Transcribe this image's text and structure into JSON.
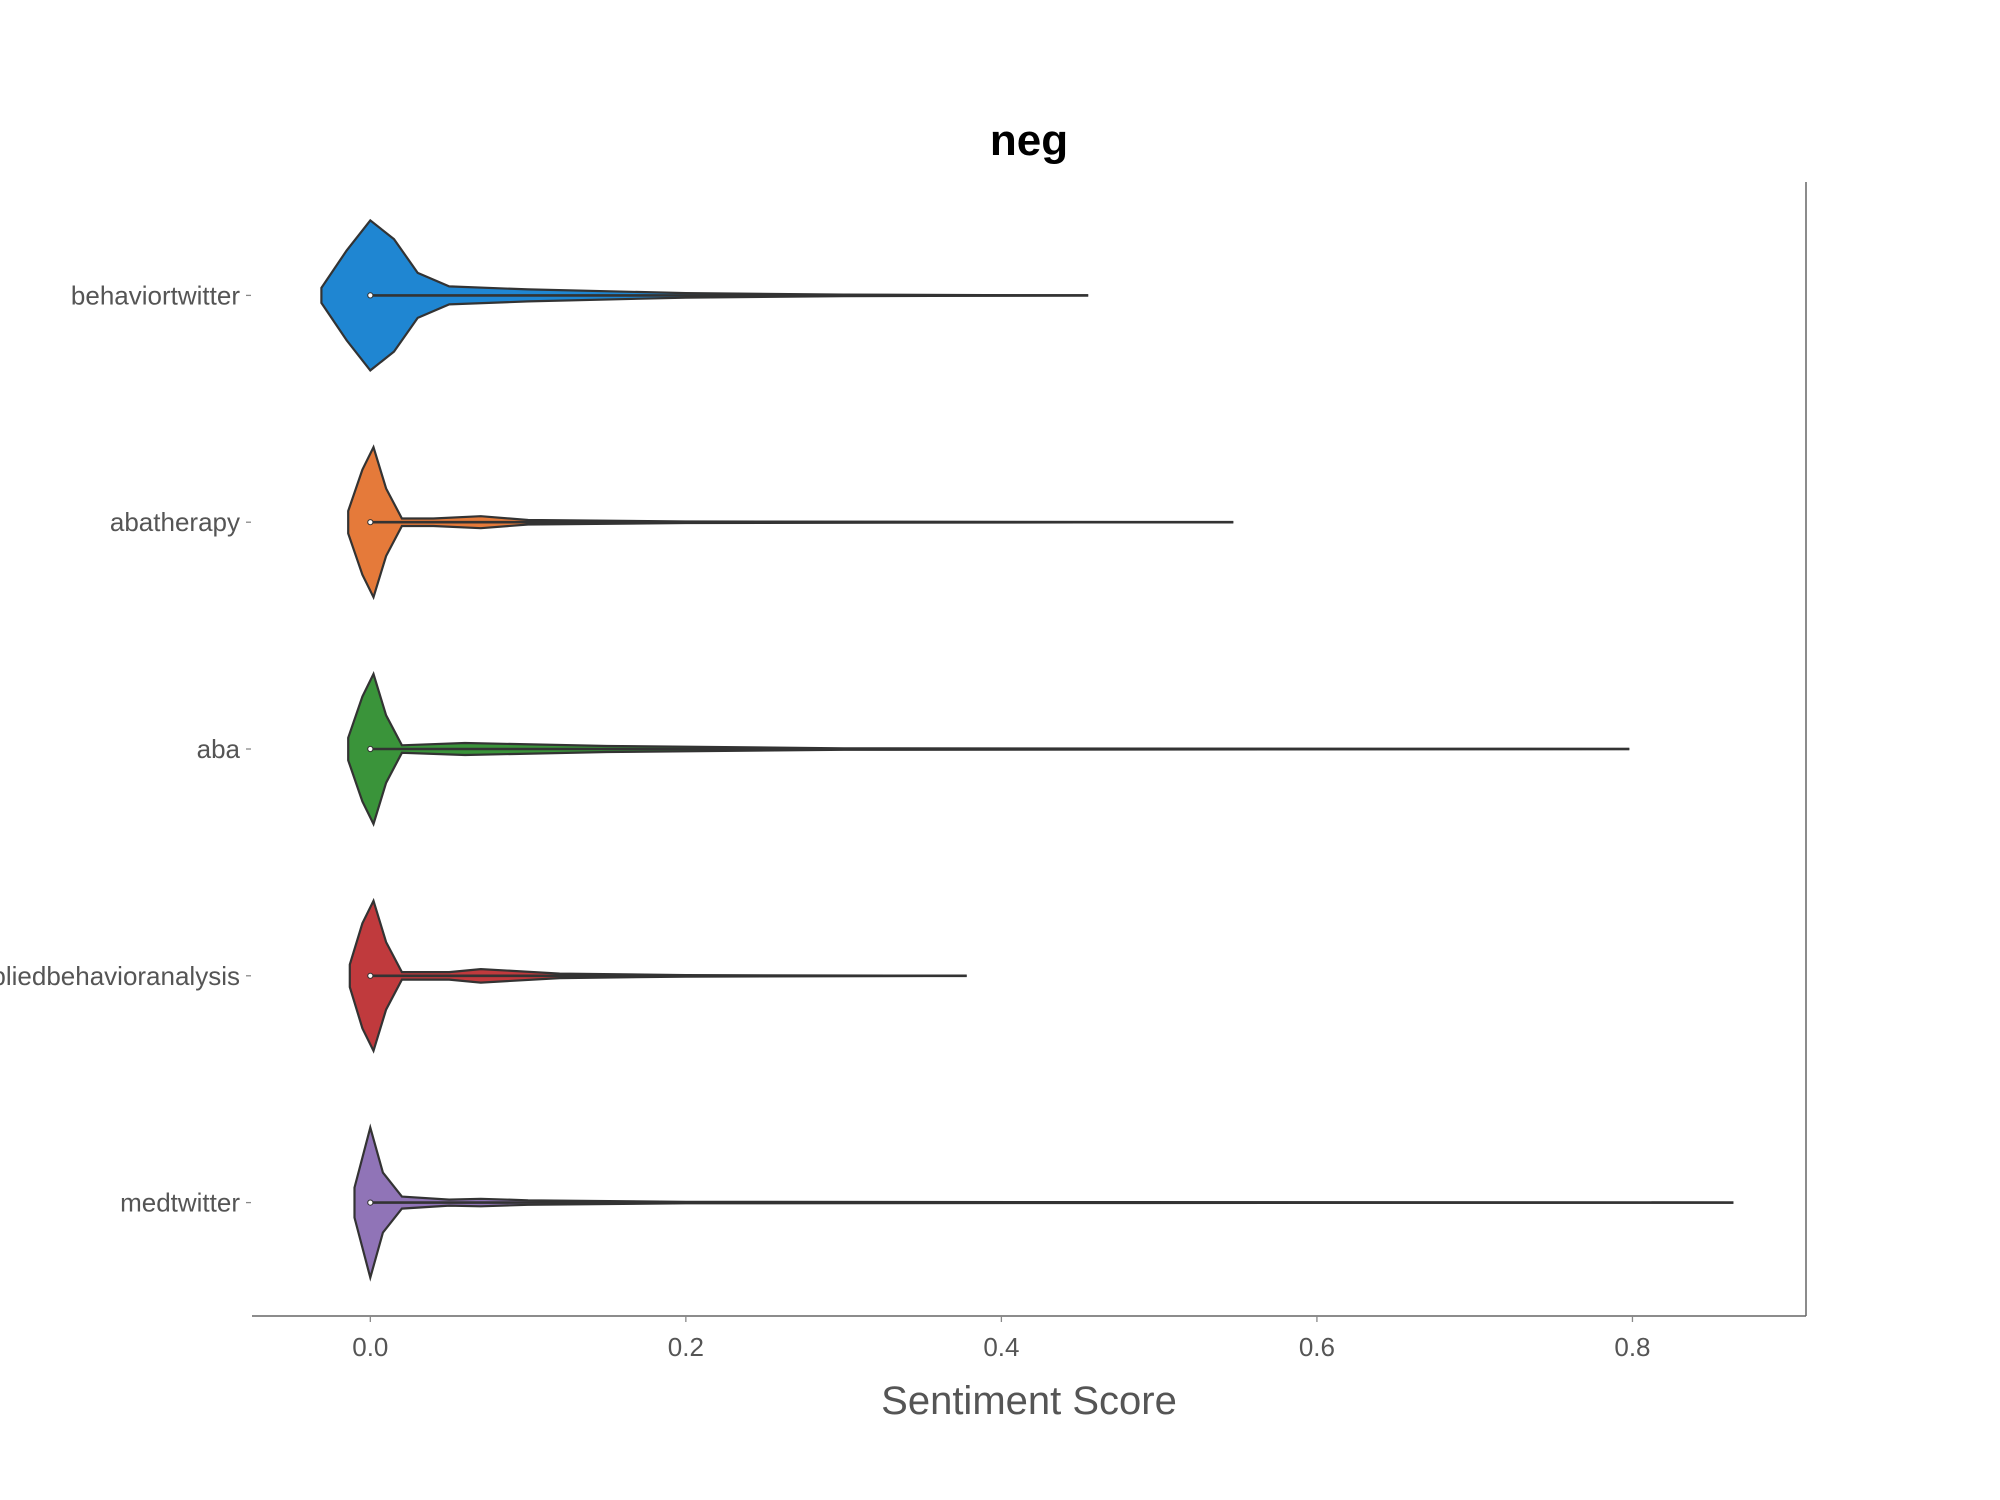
{
  "chart_data": {
    "type": "violin",
    "orientation": "horizontal",
    "title": "neg",
    "xlabel": "Sentiment Score",
    "ylabel": "",
    "xlim": [
      -0.075,
      0.91
    ],
    "xticks": [
      0.0,
      0.2,
      0.4,
      0.6,
      0.8
    ],
    "xtick_labels": [
      "0.0",
      "0.2",
      "0.4",
      "0.6",
      "0.8"
    ],
    "grid": false,
    "categories": [
      "behaviortwitter",
      "abatherapy",
      "aba",
      "appliedbehavioranalysis",
      "medtwitter"
    ],
    "series": [
      {
        "category": "behaviortwitter",
        "color": "#1f86d2",
        "median": 0.0,
        "max": 0.455,
        "density": [
          [
            -0.031,
            0.1
          ],
          [
            -0.015,
            0.6
          ],
          [
            0.0,
            1.0
          ],
          [
            0.015,
            0.75
          ],
          [
            0.03,
            0.3
          ],
          [
            0.05,
            0.12
          ],
          [
            0.1,
            0.08
          ],
          [
            0.2,
            0.03
          ],
          [
            0.3,
            0.01
          ],
          [
            0.455,
            0.0
          ]
        ]
      },
      {
        "category": "abatherapy",
        "color": "#e57a3a",
        "median": 0.0,
        "max": 0.547,
        "density": [
          [
            -0.014,
            0.15
          ],
          [
            -0.005,
            0.7
          ],
          [
            0.002,
            1.0
          ],
          [
            0.01,
            0.45
          ],
          [
            0.02,
            0.05
          ],
          [
            0.04,
            0.05
          ],
          [
            0.07,
            0.08
          ],
          [
            0.1,
            0.03
          ],
          [
            0.2,
            0.01
          ],
          [
            0.547,
            0.0
          ]
        ]
      },
      {
        "category": "aba",
        "color": "#3a943a",
        "median": 0.0,
        "max": 0.798,
        "density": [
          [
            -0.014,
            0.15
          ],
          [
            -0.005,
            0.7
          ],
          [
            0.002,
            1.0
          ],
          [
            0.01,
            0.45
          ],
          [
            0.02,
            0.05
          ],
          [
            0.06,
            0.08
          ],
          [
            0.15,
            0.04
          ],
          [
            0.3,
            0.01
          ],
          [
            0.798,
            0.0
          ]
        ]
      },
      {
        "category": "appliedbehavioranalysis",
        "color": "#c03a3d",
        "median": 0.0,
        "max": 0.378,
        "density": [
          [
            -0.013,
            0.15
          ],
          [
            -0.005,
            0.7
          ],
          [
            0.002,
            1.0
          ],
          [
            0.01,
            0.45
          ],
          [
            0.02,
            0.05
          ],
          [
            0.05,
            0.05
          ],
          [
            0.07,
            0.09
          ],
          [
            0.12,
            0.03
          ],
          [
            0.2,
            0.01
          ],
          [
            0.378,
            0.0
          ]
        ]
      },
      {
        "category": "medtwitter",
        "color": "#9074b7",
        "median": 0.0,
        "max": 0.864,
        "density": [
          [
            -0.01,
            0.2
          ],
          [
            -0.005,
            0.6
          ],
          [
            0.0,
            1.0
          ],
          [
            0.008,
            0.4
          ],
          [
            0.02,
            0.08
          ],
          [
            0.05,
            0.04
          ],
          [
            0.07,
            0.05
          ],
          [
            0.1,
            0.03
          ],
          [
            0.2,
            0.01
          ],
          [
            0.864,
            0.0
          ]
        ]
      }
    ]
  }
}
